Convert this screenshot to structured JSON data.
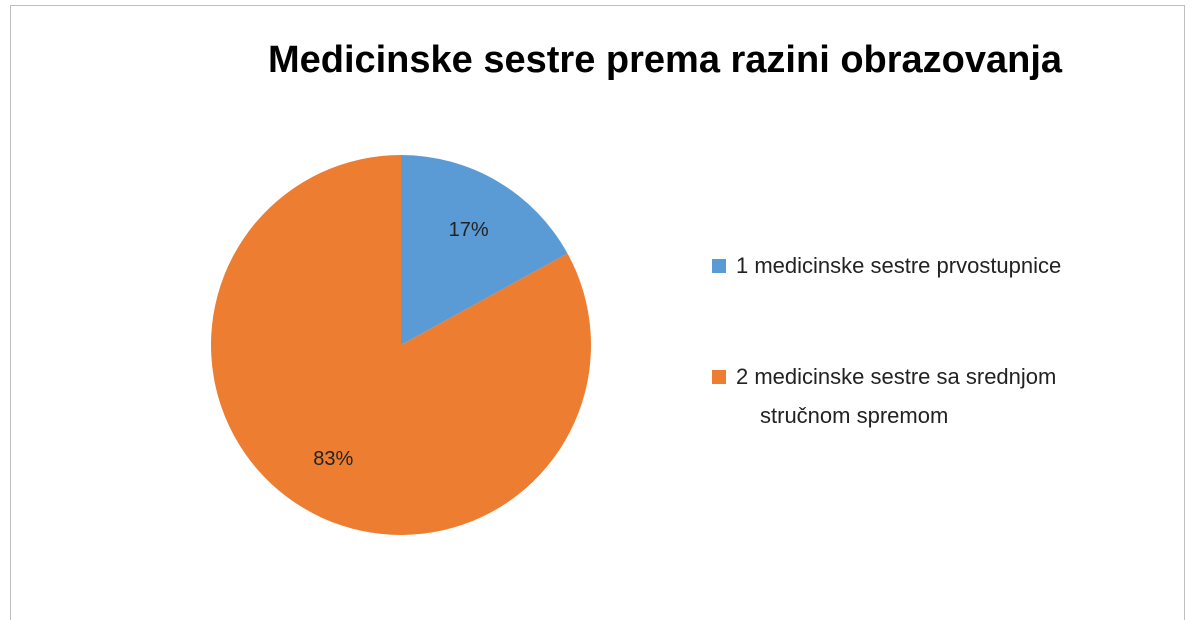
{
  "chart_data": {
    "type": "pie",
    "title": "Medicinske sestre prema razini obrazovanja",
    "categories": [
      "1 medicinske sestre prvostupnice",
      "2 medicinske sestre sa srednjom stručnom spremom"
    ],
    "values": [
      17,
      83
    ],
    "value_labels": [
      "17%",
      "83%"
    ],
    "colors": [
      "#5b9bd5",
      "#ed7d31"
    ],
    "legend": "right"
  }
}
